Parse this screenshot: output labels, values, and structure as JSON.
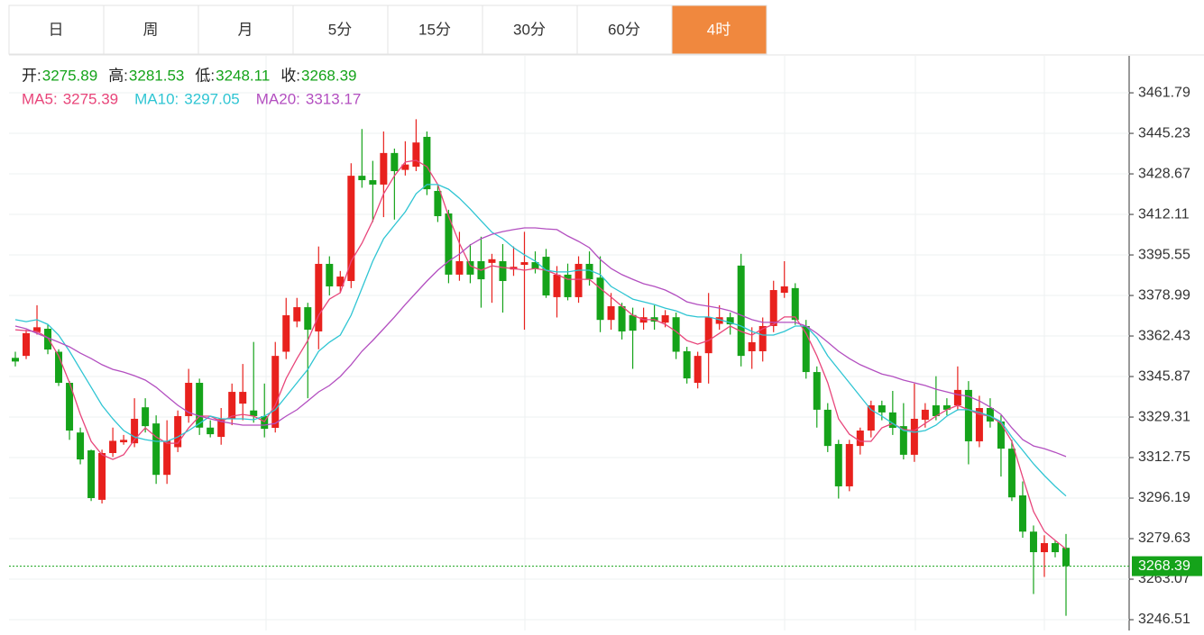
{
  "tabs": [
    "日",
    "周",
    "月",
    "5分",
    "15分",
    "30分",
    "60分",
    "4时"
  ],
  "active_tab": "4时",
  "chart_data": {
    "type": "candlestick",
    "ohlc_labels": [
      "开:",
      "高:",
      "低:",
      "收:"
    ],
    "up_color": "#e8211d",
    "down_color": "#15a31a",
    "ylim": [
      3242.1,
      3476.9
    ],
    "yticks": [
      3461.79,
      3445.23,
      3428.67,
      3412.11,
      3395.55,
      3378.99,
      3362.43,
      3345.87,
      3329.31,
      3312.75,
      3296.19,
      3279.63,
      3263.07,
      3246.51
    ],
    "grid": true,
    "open": [
      3353.5,
      3354.3,
      3364,
      3365.4,
      3356,
      3343.3,
      3323,
      3315.7,
      3295.5,
      3314.6,
      3319,
      3318.6,
      3333.3,
      3326.7,
      3305.7,
      3317,
      3329.7,
      3343.3,
      3325,
      3321.2,
      3328.5,
      3334.8,
      3332,
      3329.7,
      3324.9,
      3356,
      3368.4,
      3374.2,
      3364.3,
      3391.9,
      3382.7,
      3384.9,
      3427.9,
      3426.1,
      3424.3,
      3437.2,
      3430.3,
      3431.6,
      3443.8,
      3421.7,
      3412.5,
      3387.5,
      3393,
      3393,
      3392.3,
      3393,
      3389.6,
      3391.5,
      3392.6,
      3394.8,
      3378.3,
      3387.5,
      3378.3,
      3391.9,
      3386.3,
      3369,
      3374.6,
      3371,
      3367.9,
      3370.1,
      3367.9,
      3370.1,
      3356.2,
      3343.3,
      3355.4,
      3367.4,
      3370.1,
      3391.2,
      3356.2,
      3356.2,
      3366.5,
      3380.1,
      3382,
      3366.5,
      3347.7,
      3332.3,
      3318.3,
      3301,
      3317.5,
      3323.8,
      3334.1,
      3331.2,
      3325.6,
      3313.9,
      3328.2,
      3334.1,
      3334.1,
      3334.1,
      3340.4,
      3319.4,
      3333,
      3327.5,
      3316.4,
      3297.3,
      3282.5,
      3274.1,
      3277.8,
      3275.89
    ],
    "high": [
      3356,
      3365,
      3375,
      3367,
      3357,
      3344,
      3325,
      3316,
      3316,
      3325,
      3322,
      3337,
      3337,
      3330,
      3328,
      3332,
      3349,
      3345,
      3328,
      3333,
      3343,
      3351,
      3360,
      3343,
      3360,
      3378,
      3378,
      3376,
      3399,
      3395,
      3389,
      3433,
      3447,
      3434,
      3446,
      3439,
      3442,
      3451,
      3446,
      3424,
      3414,
      3405,
      3400,
      3403,
      3396,
      3400,
      3399,
      3405,
      3397,
      3398,
      3391,
      3392,
      3395,
      3397,
      3395,
      3380,
      3376,
      3374,
      3374,
      3375,
      3373,
      3372,
      3358,
      3356,
      3380,
      3375,
      3372,
      3396,
      3366,
      3370,
      3385,
      3393,
      3384,
      3369,
      3350,
      3335,
      3320,
      3320,
      3325,
      3336,
      3336,
      3340,
      3335,
      3343,
      3335,
      3346,
      3337,
      3350,
      3344,
      3338,
      3337,
      3330,
      3320,
      3303,
      3285,
      3281,
      3279,
      3281.53
    ],
    "low": [
      3350,
      3353,
      3363,
      3355,
      3342,
      3320,
      3310,
      3295,
      3294,
      3313,
      3318,
      3317,
      3323,
      3302,
      3302,
      3315,
      3327,
      3322,
      3321,
      3318,
      3326,
      3328,
      3327,
      3321,
      3323,
      3353,
      3366,
      3337,
      3357,
      3379,
      3380,
      3382,
      3423,
      3409,
      3411,
      3410,
      3428,
      3429.8,
      3420,
      3409,
      3384,
      3385,
      3384,
      3374,
      3376,
      3372,
      3387,
      3365,
      3388,
      3378,
      3370,
      3377,
      3376,
      3383,
      3364,
      3365,
      3361,
      3349,
      3365,
      3365,
      3366,
      3353,
      3343,
      3341,
      3343,
      3365,
      3363,
      3350,
      3349,
      3352,
      3364,
      3378,
      3367,
      3345,
      3325,
      3315,
      3296,
      3299,
      3314,
      3321,
      3328,
      3322,
      3312,
      3311,
      3325,
      3328,
      3330,
      3332,
      3310,
      3317,
      3325,
      3305,
      3295,
      3280,
      3257,
      3264,
      3272,
      3248.11
    ],
    "close": [
      3352,
      3363.6,
      3366,
      3356.9,
      3343.3,
      3323.8,
      3312,
      3296.2,
      3314.6,
      3319.6,
      3320,
      3328.6,
      3325.6,
      3305.7,
      3319.6,
      3329.7,
      3343.3,
      3325,
      3322.3,
      3328.5,
      3339.6,
      3339.6,
      3329.7,
      3324.5,
      3354.3,
      3370.9,
      3374.2,
      3365,
      3391.9,
      3382.7,
      3386.7,
      3427.9,
      3426.1,
      3424.3,
      3437.2,
      3429.8,
      3432.5,
      3441.5,
      3422.4,
      3411.4,
      3387.5,
      3393,
      3387.5,
      3385.6,
      3393.8,
      3384.9,
      3390.7,
      3392.6,
      3390,
      3379,
      3387.5,
      3378.3,
      3391.9,
      3385.6,
      3369,
      3374.6,
      3364.3,
      3364.6,
      3370.1,
      3368.3,
      3370.9,
      3356,
      3345.1,
      3354.3,
      3370.1,
      3370.1,
      3367.2,
      3354.3,
      3359.9,
      3366.5,
      3381.2,
      3382.7,
      3369,
      3347.7,
      3332.3,
      3317.5,
      3301,
      3318.3,
      3323.8,
      3334.1,
      3331.2,
      3324.9,
      3313.9,
      3328.6,
      3332.3,
      3329.7,
      3332.3,
      3340.4,
      3319.4,
      3333,
      3327.5,
      3316.4,
      3296.5,
      3282.5,
      3274.1,
      3277.8,
      3274.1,
      3268.39
    ],
    "series": [
      {
        "name": "MA5:",
        "color": "#e8457a",
        "values": [
          3365.0,
          3364.6,
          3364.3,
          3361.7,
          3354.3,
          3343.3,
          3330.4,
          3319.4,
          3313.9,
          3312.0,
          3313.9,
          3320.1,
          3324.9,
          3321.2,
          3318.6,
          3318.6,
          3324.9,
          3329.7,
          3329.7,
          3327.5,
          3329.7,
          3330.4,
          3329.7,
          3327.5,
          3334.1,
          3345.1,
          3353.2,
          3360.6,
          3370.9,
          3377.5,
          3380.1,
          3393.0,
          3400.3,
          3409.5,
          3420.6,
          3427.9,
          3433.5,
          3434.2,
          3431.6,
          3424.3,
          3411.4,
          3400.3,
          3391.1,
          3389.3,
          3391.1,
          3390.4,
          3390.0,
          3389.3,
          3390.0,
          3389.3,
          3387.5,
          3385.6,
          3385.6,
          3385.6,
          3381.9,
          3378.3,
          3374.6,
          3370.9,
          3369.1,
          3369.1,
          3367.2,
          3364.3,
          3360.6,
          3359.1,
          3360.6,
          3363.5,
          3366.5,
          3364.3,
          3362.8,
          3365.4,
          3367.2,
          3370.2,
          3370.2,
          3363.5,
          3354.3,
          3343.3,
          3328.6,
          3322.3,
          3319.4,
          3319.4,
          3324.9,
          3326.7,
          3324.2,
          3323.8,
          3326.7,
          3329.7,
          3332.3,
          3334.1,
          3332.3,
          3330.4,
          3329.7,
          3326.7,
          3319.4,
          3304.7,
          3290.7,
          3282.6,
          3278.9,
          3275.39
        ]
      },
      {
        "name": "MA10:",
        "color": "#2fc5d3",
        "values": [
          3369.1,
          3368.3,
          3369.1,
          3367.2,
          3362.8,
          3356.2,
          3348.8,
          3341.5,
          3334.1,
          3328.6,
          3323.8,
          3321.2,
          3320.1,
          3319.4,
          3319.4,
          3321.2,
          3323.8,
          3326.7,
          3329.7,
          3328.6,
          3328.6,
          3328.6,
          3328.2,
          3329.7,
          3332.3,
          3337.8,
          3343.3,
          3348.8,
          3356.2,
          3359.9,
          3362.8,
          3370.9,
          3381.9,
          3393.0,
          3402.2,
          3407.7,
          3413.2,
          3420.6,
          3424.3,
          3424.3,
          3422.4,
          3418.7,
          3414.3,
          3409.5,
          3404.8,
          3402.2,
          3398.5,
          3395.6,
          3393.0,
          3389.3,
          3388.6,
          3388.6,
          3389.3,
          3389.3,
          3387.5,
          3382.7,
          3380.1,
          3377.5,
          3376.4,
          3375.3,
          3373.8,
          3372.7,
          3370.9,
          3370.2,
          3370.2,
          3369.1,
          3367.9,
          3366.5,
          3364.3,
          3362.8,
          3362.8,
          3364.3,
          3366.5,
          3366.5,
          3361.7,
          3354.3,
          3348.8,
          3343.3,
          3337.8,
          3332.3,
          3329.7,
          3326.7,
          3323.8,
          3323.1,
          3323.8,
          3326.0,
          3329.7,
          3332.3,
          3332.3,
          3331.2,
          3329.7,
          3327.5,
          3321.2,
          3315.7,
          3310.2,
          3305.4,
          3301.0,
          3297.05
        ]
      },
      {
        "name": "MA20:",
        "color": "#b34fc0",
        "values": [
          3366.5,
          3365.4,
          3363.5,
          3361.7,
          3359.9,
          3358.0,
          3355.4,
          3353.2,
          3350.7,
          3348.8,
          3347.7,
          3346.2,
          3344.4,
          3341.5,
          3337.8,
          3334.1,
          3331.2,
          3329.7,
          3328.6,
          3327.5,
          3326.7,
          3326.0,
          3326.0,
          3326.0,
          3326.7,
          3329.7,
          3332.3,
          3335.9,
          3339.6,
          3342.2,
          3345.9,
          3350.7,
          3356.2,
          3360.6,
          3365.4,
          3370.2,
          3375.3,
          3380.1,
          3384.9,
          3389.3,
          3393.0,
          3395.9,
          3399.6,
          3402.2,
          3404.0,
          3405.1,
          3405.9,
          3406.6,
          3406.6,
          3406.2,
          3405.9,
          3403.3,
          3401.1,
          3398.5,
          3393.7,
          3390.0,
          3387.5,
          3385.6,
          3383.8,
          3382.7,
          3381.2,
          3379.0,
          3376.4,
          3375.3,
          3374.6,
          3373.8,
          3372.7,
          3370.9,
          3369.1,
          3368.0,
          3368.0,
          3368.0,
          3368.0,
          3366.5,
          3363.5,
          3359.9,
          3356.2,
          3353.2,
          3350.7,
          3348.8,
          3346.9,
          3345.9,
          3344.4,
          3343.3,
          3342.2,
          3340.7,
          3339.6,
          3338.5,
          3337.8,
          3335.9,
          3333.4,
          3330.4,
          3324.9,
          3320.1,
          3317.5,
          3316.4,
          3314.9,
          3313.17
        ]
      }
    ]
  }
}
